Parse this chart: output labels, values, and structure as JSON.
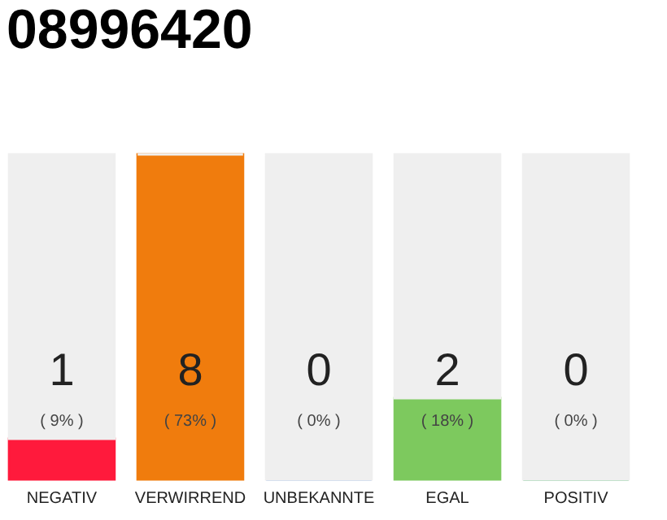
{
  "chart_data": {
    "type": "bar",
    "title": "08996420",
    "stacked": true,
    "categories": [
      "NEGATIV",
      "VERWIRREND",
      "UNBEKANNTE",
      "EGAL",
      "POSITIV"
    ],
    "series": [
      {
        "colors": [
          "#ff1a3c",
          "#f07c0d",
          "#7aa0e0",
          "#7dc95e",
          "#2aa84a"
        ],
        "values": [
          1,
          8,
          0,
          2,
          0
        ],
        "value_labels": [
          "1",
          "8",
          "0",
          "2",
          "0"
        ]
      },
      {
        "color": "#efefef",
        "values": [
          7,
          0,
          8,
          6,
          8
        ]
      }
    ],
    "annotations": [
      "( 9% )",
      "( 73% )",
      "( 0% )",
      "( 18% )",
      "( 0% )"
    ]
  }
}
